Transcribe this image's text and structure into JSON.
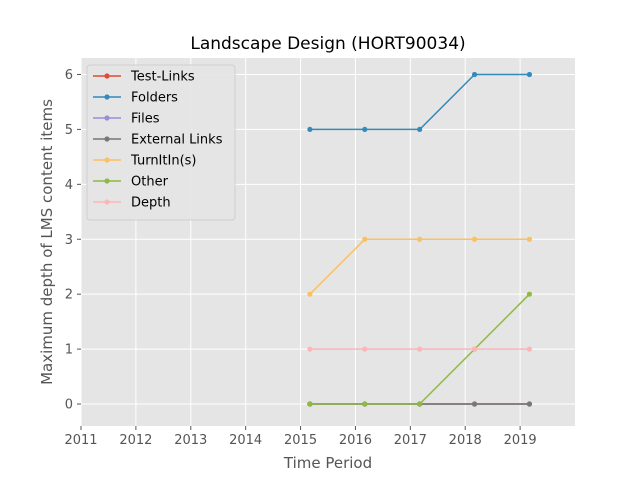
{
  "chart_data": {
    "type": "line",
    "title": "Landscape Design (HORT90034)",
    "xlabel": "Time Period",
    "ylabel": "Maximum depth of LMS content items",
    "xlim": [
      2011,
      2020
    ],
    "ylim": [
      -0.4,
      6.3
    ],
    "xticks": [
      "2011",
      "2012",
      "2013",
      "2014",
      "2015",
      "2016",
      "2017",
      "2018",
      "2019"
    ],
    "yticks": [
      "0",
      "1",
      "2",
      "3",
      "4",
      "5",
      "6"
    ],
    "grid": true,
    "legend_position": "top-left",
    "x": [
      2015.17,
      2016.17,
      2017.17,
      2018.17,
      2019.17
    ],
    "series": [
      {
        "name": "Test-Links",
        "color": "#e24a33",
        "values": [
          0,
          0,
          0,
          0,
          0
        ]
      },
      {
        "name": "Folders",
        "color": "#348abd",
        "values": [
          5,
          5,
          5,
          6,
          6
        ]
      },
      {
        "name": "Files",
        "color": "#988ed5",
        "values": [
          0,
          0,
          0,
          0,
          0
        ]
      },
      {
        "name": "External Links",
        "color": "#777777",
        "values": [
          0,
          0,
          0,
          0,
          0
        ]
      },
      {
        "name": "TurnItIn(s)",
        "color": "#fbc15e",
        "values": [
          2,
          3,
          3,
          3,
          3
        ]
      },
      {
        "name": "Other",
        "color": "#8eba42",
        "values": [
          0,
          0,
          0,
          1,
          2
        ]
      },
      {
        "name": "Depth",
        "color": "#ffb5b8",
        "values": [
          1,
          1,
          1,
          1,
          1
        ]
      }
    ]
  }
}
